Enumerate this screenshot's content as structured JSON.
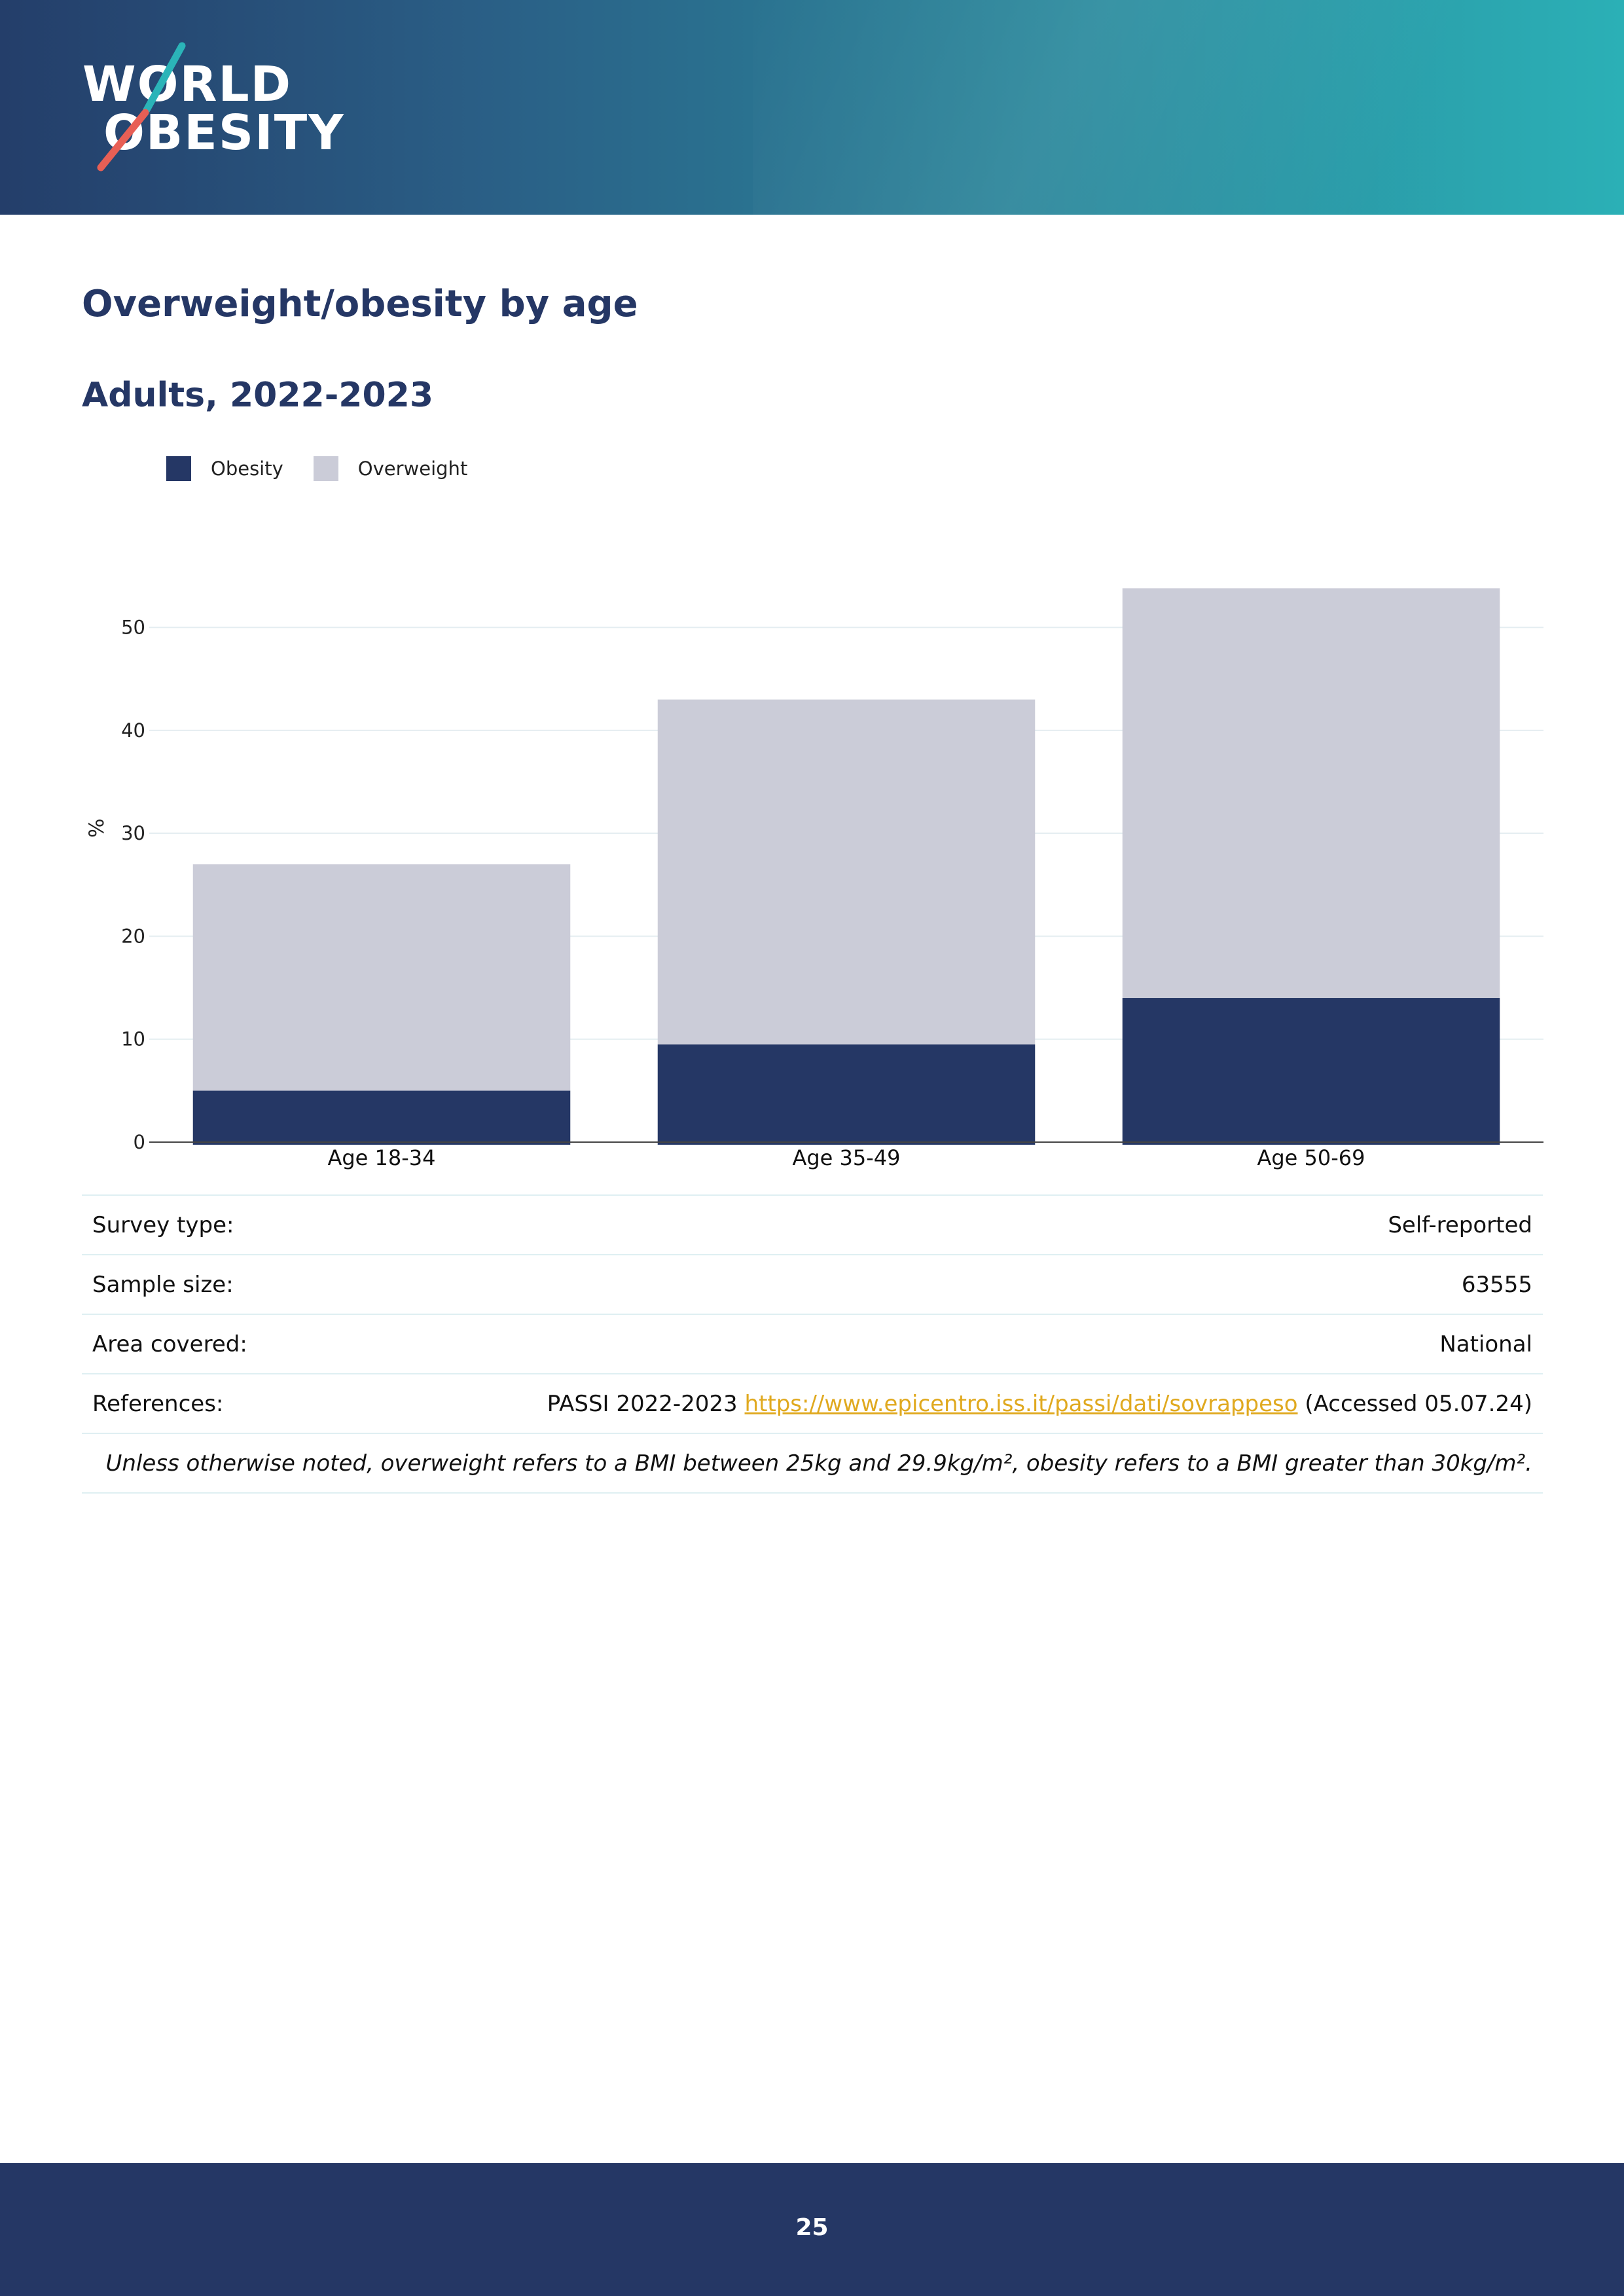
{
  "brand": {
    "logo_line1": "WORLD",
    "logo_line2": "OBESITY",
    "logo_accent_teal": "#2bb4b8",
    "logo_accent_coral": "#e85f55"
  },
  "page": {
    "title": "Overweight/obesity by age",
    "subtitle": "Adults, 2022-2023",
    "page_number": "25"
  },
  "colors": {
    "obesity": "#253765",
    "overweight": "#cbccd8",
    "heading": "#253765",
    "link": "#e0a91f"
  },
  "chart_data": {
    "type": "bar",
    "stacked": true,
    "categories": [
      "Age 18-34",
      "Age 35-49",
      "Age 50-69"
    ],
    "series": [
      {
        "name": "Obesity",
        "values": [
          5,
          9.5,
          14
        ]
      },
      {
        "name": "Overweight",
        "values": [
          22,
          33.5,
          39.8
        ]
      }
    ],
    "ylabel": "%",
    "xlabel": "",
    "ylim": [
      0,
      55
    ],
    "yticks": [
      0,
      10,
      20,
      30,
      40,
      50
    ],
    "grid": true,
    "legend_position": "top-left"
  },
  "info": {
    "survey_type_label": "Survey type:",
    "survey_type_value": "Self-reported",
    "sample_size_label": "Sample size:",
    "sample_size_value": "63555",
    "area_label": "Area covered:",
    "area_value": "National",
    "references_label": "References:",
    "references_prefix": "PASSI 2022-2023",
    "references_link": "https://www.epicentro.iss.it/passi/dati/sovrappeso",
    "references_suffix": "(Accessed 05.07.24)",
    "note": "Unless otherwise noted, overweight refers to a BMI between 25kg and 29.9kg/m², obesity refers to a BMI greater than 30kg/m²."
  }
}
